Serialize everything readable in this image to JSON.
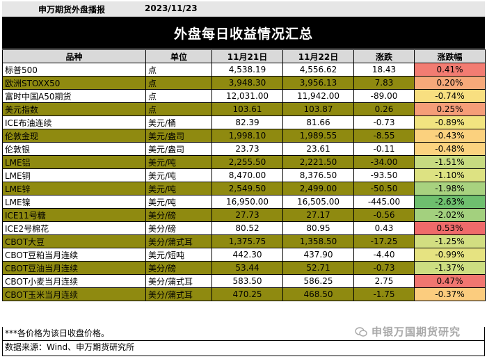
{
  "header": {
    "source": "申万期货外盘播报",
    "date": "2023/11/23"
  },
  "banner_title": "外盘每日收益情况汇总",
  "table": {
    "columns": [
      "品种",
      "单位",
      "11月21日",
      "11月22日",
      "涨跌",
      "涨跌幅"
    ],
    "rows": [
      {
        "name": "标普500",
        "unit": "点",
        "d21": "4,538.19",
        "d22": "4,556.62",
        "chg": "18.43",
        "pct": "0.41%",
        "olive": false,
        "pct_color": "#f27c72"
      },
      {
        "name": "欧洲STOXX50",
        "unit": "点",
        "d21": "3,948.30",
        "d22": "3,956.13",
        "chg": "7.83",
        "pct": "0.20%",
        "olive": true,
        "pct_color": "#f6a97a"
      },
      {
        "name": "富时中国A50期货",
        "unit": "点",
        "d21": "12,031.00",
        "d22": "11,942.00",
        "chg": "-89.00",
        "pct": "-0.74%",
        "olive": false,
        "pct_color": "#f8df80"
      },
      {
        "name": "美元指数",
        "unit": "点",
        "d21": "103.61",
        "d22": "103.87",
        "chg": "0.26",
        "pct": "0.25%",
        "olive": true,
        "pct_color": "#f59d78"
      },
      {
        "name": "ICE布油连续",
        "unit": "美元/桶",
        "d21": "82.39",
        "d22": "81.66",
        "chg": "-0.73",
        "pct": "-0.89%",
        "olive": false,
        "pct_color": "#f1e480"
      },
      {
        "name": "伦敦金现",
        "unit": "美元/盎司",
        "d21": "1,998.10",
        "d22": "1,989.55",
        "chg": "-8.55",
        "pct": "-0.43%",
        "olive": true,
        "pct_color": "#fbd17e"
      },
      {
        "name": "伦敦银",
        "unit": "美元/盎司",
        "d21": "23.73",
        "d22": "23.61",
        "chg": "-0.11",
        "pct": "-0.48%",
        "olive": false,
        "pct_color": "#fbd37f"
      },
      {
        "name": "LME铝",
        "unit": "美元/吨",
        "d21": "2,255.50",
        "d22": "2,221.50",
        "chg": "-34.00",
        "pct": "-1.51%",
        "olive": true,
        "pct_color": "#c7db80"
      },
      {
        "name": "LME铜",
        "unit": "美元/吨",
        "d21": "8,470.00",
        "d22": "8,376.50",
        "chg": "-93.50",
        "pct": "-1.10%",
        "olive": false,
        "pct_color": "#dde282"
      },
      {
        "name": "LME锌",
        "unit": "美元/吨",
        "d21": "2,549.50",
        "d22": "2,499.00",
        "chg": "-50.50",
        "pct": "-1.98%",
        "olive": true,
        "pct_color": "#a8d27f"
      },
      {
        "name": "LME镍",
        "unit": "美元/吨",
        "d21": "16,950.00",
        "d22": "16,505.00",
        "chg": "-445.00",
        "pct": "-2.63%",
        "olive": false,
        "pct_color": "#6ebf6e"
      },
      {
        "name": "ICE11号糖",
        "unit": "美分/磅",
        "d21": "27.73",
        "d22": "27.17",
        "chg": "-0.56",
        "pct": "-2.02%",
        "olive": true,
        "pct_color": "#a3d07e"
      },
      {
        "name": "ICE2号棉花",
        "unit": "美分/磅",
        "d21": "80.52",
        "d22": "80.95",
        "chg": "0.43",
        "pct": "0.53%",
        "olive": false,
        "pct_color": "#ef6a6a"
      },
      {
        "name": "CBOT大豆",
        "unit": "美分/蒲式耳",
        "d21": "1,375.75",
        "d22": "1,358.50",
        "chg": "-17.25",
        "pct": "-1.25%",
        "olive": true,
        "pct_color": "#d2de81"
      },
      {
        "name": "CBOT豆粕当月连续",
        "unit": "美元/短吨",
        "d21": "442.30",
        "d22": "437.90",
        "chg": "-4.40",
        "pct": "-0.99%",
        "olive": false,
        "pct_color": "#e6e381"
      },
      {
        "name": "CBOT豆油当月连续",
        "unit": "美分/磅",
        "d21": "53.44",
        "d22": "52.71",
        "chg": "-0.73",
        "pct": "-1.37%",
        "olive": true,
        "pct_color": "#cdde81"
      },
      {
        "name": "CBOT小麦当月连续",
        "unit": "美分/蒲式耳",
        "d21": "583.50",
        "d22": "586.25",
        "chg": "2.75",
        "pct": "0.47%",
        "olive": false,
        "pct_color": "#f07670"
      },
      {
        "name": "CBOT玉米当月连续",
        "unit": "美分/蒲式耳",
        "d21": "470.25",
        "d22": "468.50",
        "chg": "-1.75",
        "pct": "-0.37%",
        "olive": true,
        "pct_color": "#fbcc7e"
      }
    ]
  },
  "footnotes": {
    "note": "***各价格为该日收盘价格。",
    "source": "数据来源：Wind、申万期货研究所"
  },
  "watermark": {
    "text": "申银万国期货研究"
  }
}
